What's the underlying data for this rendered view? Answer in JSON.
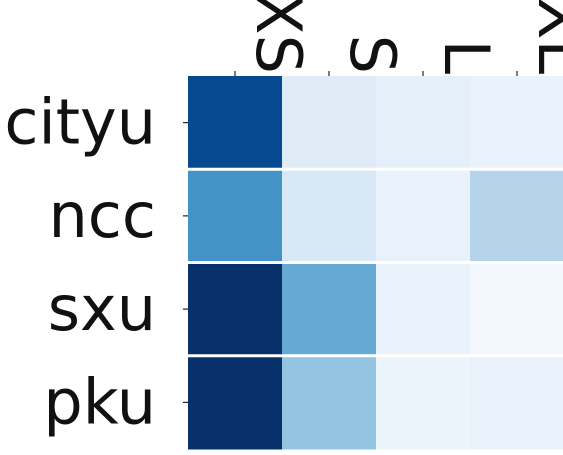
{
  "chart_data": {
    "type": "heatmap",
    "title": "",
    "xlabel": "",
    "ylabel": "",
    "x_categories": [
      "XS",
      "S",
      "L",
      "XL"
    ],
    "y_categories": [
      "cityu",
      "ncc",
      "sxu",
      "pku"
    ],
    "values": [
      [
        0.9,
        0.12,
        0.09,
        0.07
      ],
      [
        0.62,
        0.15,
        0.07,
        0.3
      ],
      [
        1.0,
        0.52,
        0.07,
        0.03
      ],
      [
        1.0,
        0.4,
        0.06,
        0.07
      ]
    ],
    "vmin": 0,
    "vmax": 1,
    "colormap": "Blues",
    "colormap_stops": [
      "#f7fbff",
      "#deebf7",
      "#c6dbef",
      "#9ecae1",
      "#6baed6",
      "#4292c6",
      "#2171b5",
      "#08519c",
      "#08306b"
    ],
    "cell_separator_color": "#ffffff",
    "x_tick_label_rotation": "rotated 90° clockwise, along top",
    "grid": false,
    "legend": "none"
  }
}
